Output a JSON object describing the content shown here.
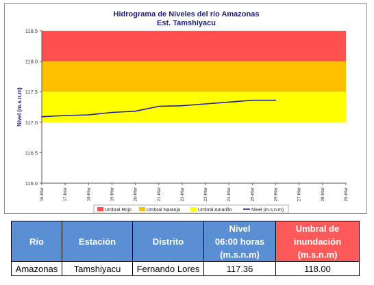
{
  "chart_data": {
    "type": "line",
    "title": "Hidrograma de Niveles del río Amazonas",
    "subtitle": "Est. Tamshiyacu",
    "ylabel": "Nivel (m.s.n.m)",
    "xlabel": "",
    "ylim": [
      116.0,
      118.5
    ],
    "yticks": [
      "116.0",
      "116.5",
      "117.0",
      "117.5",
      "118.0",
      "118.5"
    ],
    "x_categories": [
      "16-Mar",
      "17-Mar",
      "18-Mar",
      "19-Mar",
      "20-Mar",
      "21-Mar",
      "22-Mar",
      "23-Mar",
      "24-Mar",
      "25-Mar",
      "26-Mar",
      "27-Mar",
      "28-Mar",
      "29-Mar"
    ],
    "bands": [
      {
        "name": "Umbral Rojo",
        "from": 118.0,
        "to": 118.5,
        "color": "#ff5050"
      },
      {
        "name": "Umbral Naranja",
        "from": 117.5,
        "to": 118.0,
        "color": "#ffc000"
      },
      {
        "name": "Umbral Amarillo",
        "from": 117.0,
        "to": 117.5,
        "color": "#ffff00"
      }
    ],
    "series": [
      {
        "name": "Nivel (m.s.n.m)",
        "color": "#1f1fa0",
        "x": [
          "16-Mar",
          "17-Mar",
          "18-Mar",
          "19-Mar",
          "20-Mar",
          "21-Mar",
          "22-Mar",
          "23-Mar",
          "24-Mar",
          "25-Mar",
          "26-Mar"
        ],
        "values": [
          117.09,
          117.11,
          117.12,
          117.16,
          117.18,
          117.26,
          117.27,
          117.3,
          117.33,
          117.36,
          117.36
        ]
      }
    ],
    "legend": [
      "Umbral Rojo",
      "Umbral Naranja",
      "Umbral Amarillo",
      "Nivel (m.s.n.m)"
    ],
    "legend_position": "bottom",
    "grid": false
  },
  "table": {
    "headers": [
      "Río",
      "Estación",
      "Distrito",
      "Nivel\n06:00 horas\n(m.s.n.m)",
      "Umbral de\ninundación\n(m.s.n.m)"
    ],
    "rows": [
      [
        "Amazonas",
        "Tamshiyacu",
        "Fernando Lores",
        "117.36",
        "118.00"
      ]
    ]
  }
}
